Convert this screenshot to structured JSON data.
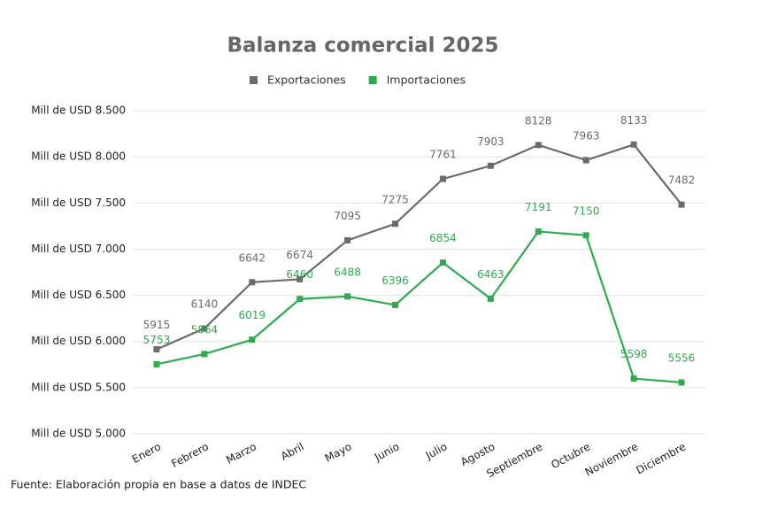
{
  "chart_data": {
    "type": "line",
    "title": "Balanza comercial 2025",
    "categories": [
      "Enero",
      "Febrero",
      "Marzo",
      "Abril",
      "Mayo",
      "Junio",
      "Julio",
      "Agosto",
      "Septiembre",
      "Octubre",
      "Noviembre",
      "Diciembre"
    ],
    "series": [
      {
        "name": "Exportaciones",
        "color": "#6b6b6b",
        "values": [
          5915,
          6140,
          6642,
          6674,
          7095,
          7275,
          7761,
          7903,
          8128,
          7963,
          8133,
          7482
        ]
      },
      {
        "name": "Importaciones",
        "color": "#2eaa4f",
        "values": [
          5753,
          5864,
          6019,
          6460,
          6488,
          6396,
          6854,
          6463,
          7191,
          7150,
          5598,
          5556
        ]
      }
    ],
    "ylim": [
      5000,
      8500
    ],
    "yticks": [
      {
        "value": 5000,
        "label": "Mill de USD 5.000"
      },
      {
        "value": 5500,
        "label": "Mill de USD 5.500"
      },
      {
        "value": 6000,
        "label": "Mill de USD 6.000"
      },
      {
        "value": 6500,
        "label": "Mill de USD 6.500"
      },
      {
        "value": 7000,
        "label": "Mill de USD 7.000"
      },
      {
        "value": 7500,
        "label": "Mill de USD 7.500"
      },
      {
        "value": 8000,
        "label": "Mill de USD 8.000"
      },
      {
        "value": 8500,
        "label": "Mill de USD 8.500"
      }
    ],
    "grid": true,
    "legend": "top",
    "source": "Fuente: Elaboración propia en base a datos de INDEC"
  }
}
